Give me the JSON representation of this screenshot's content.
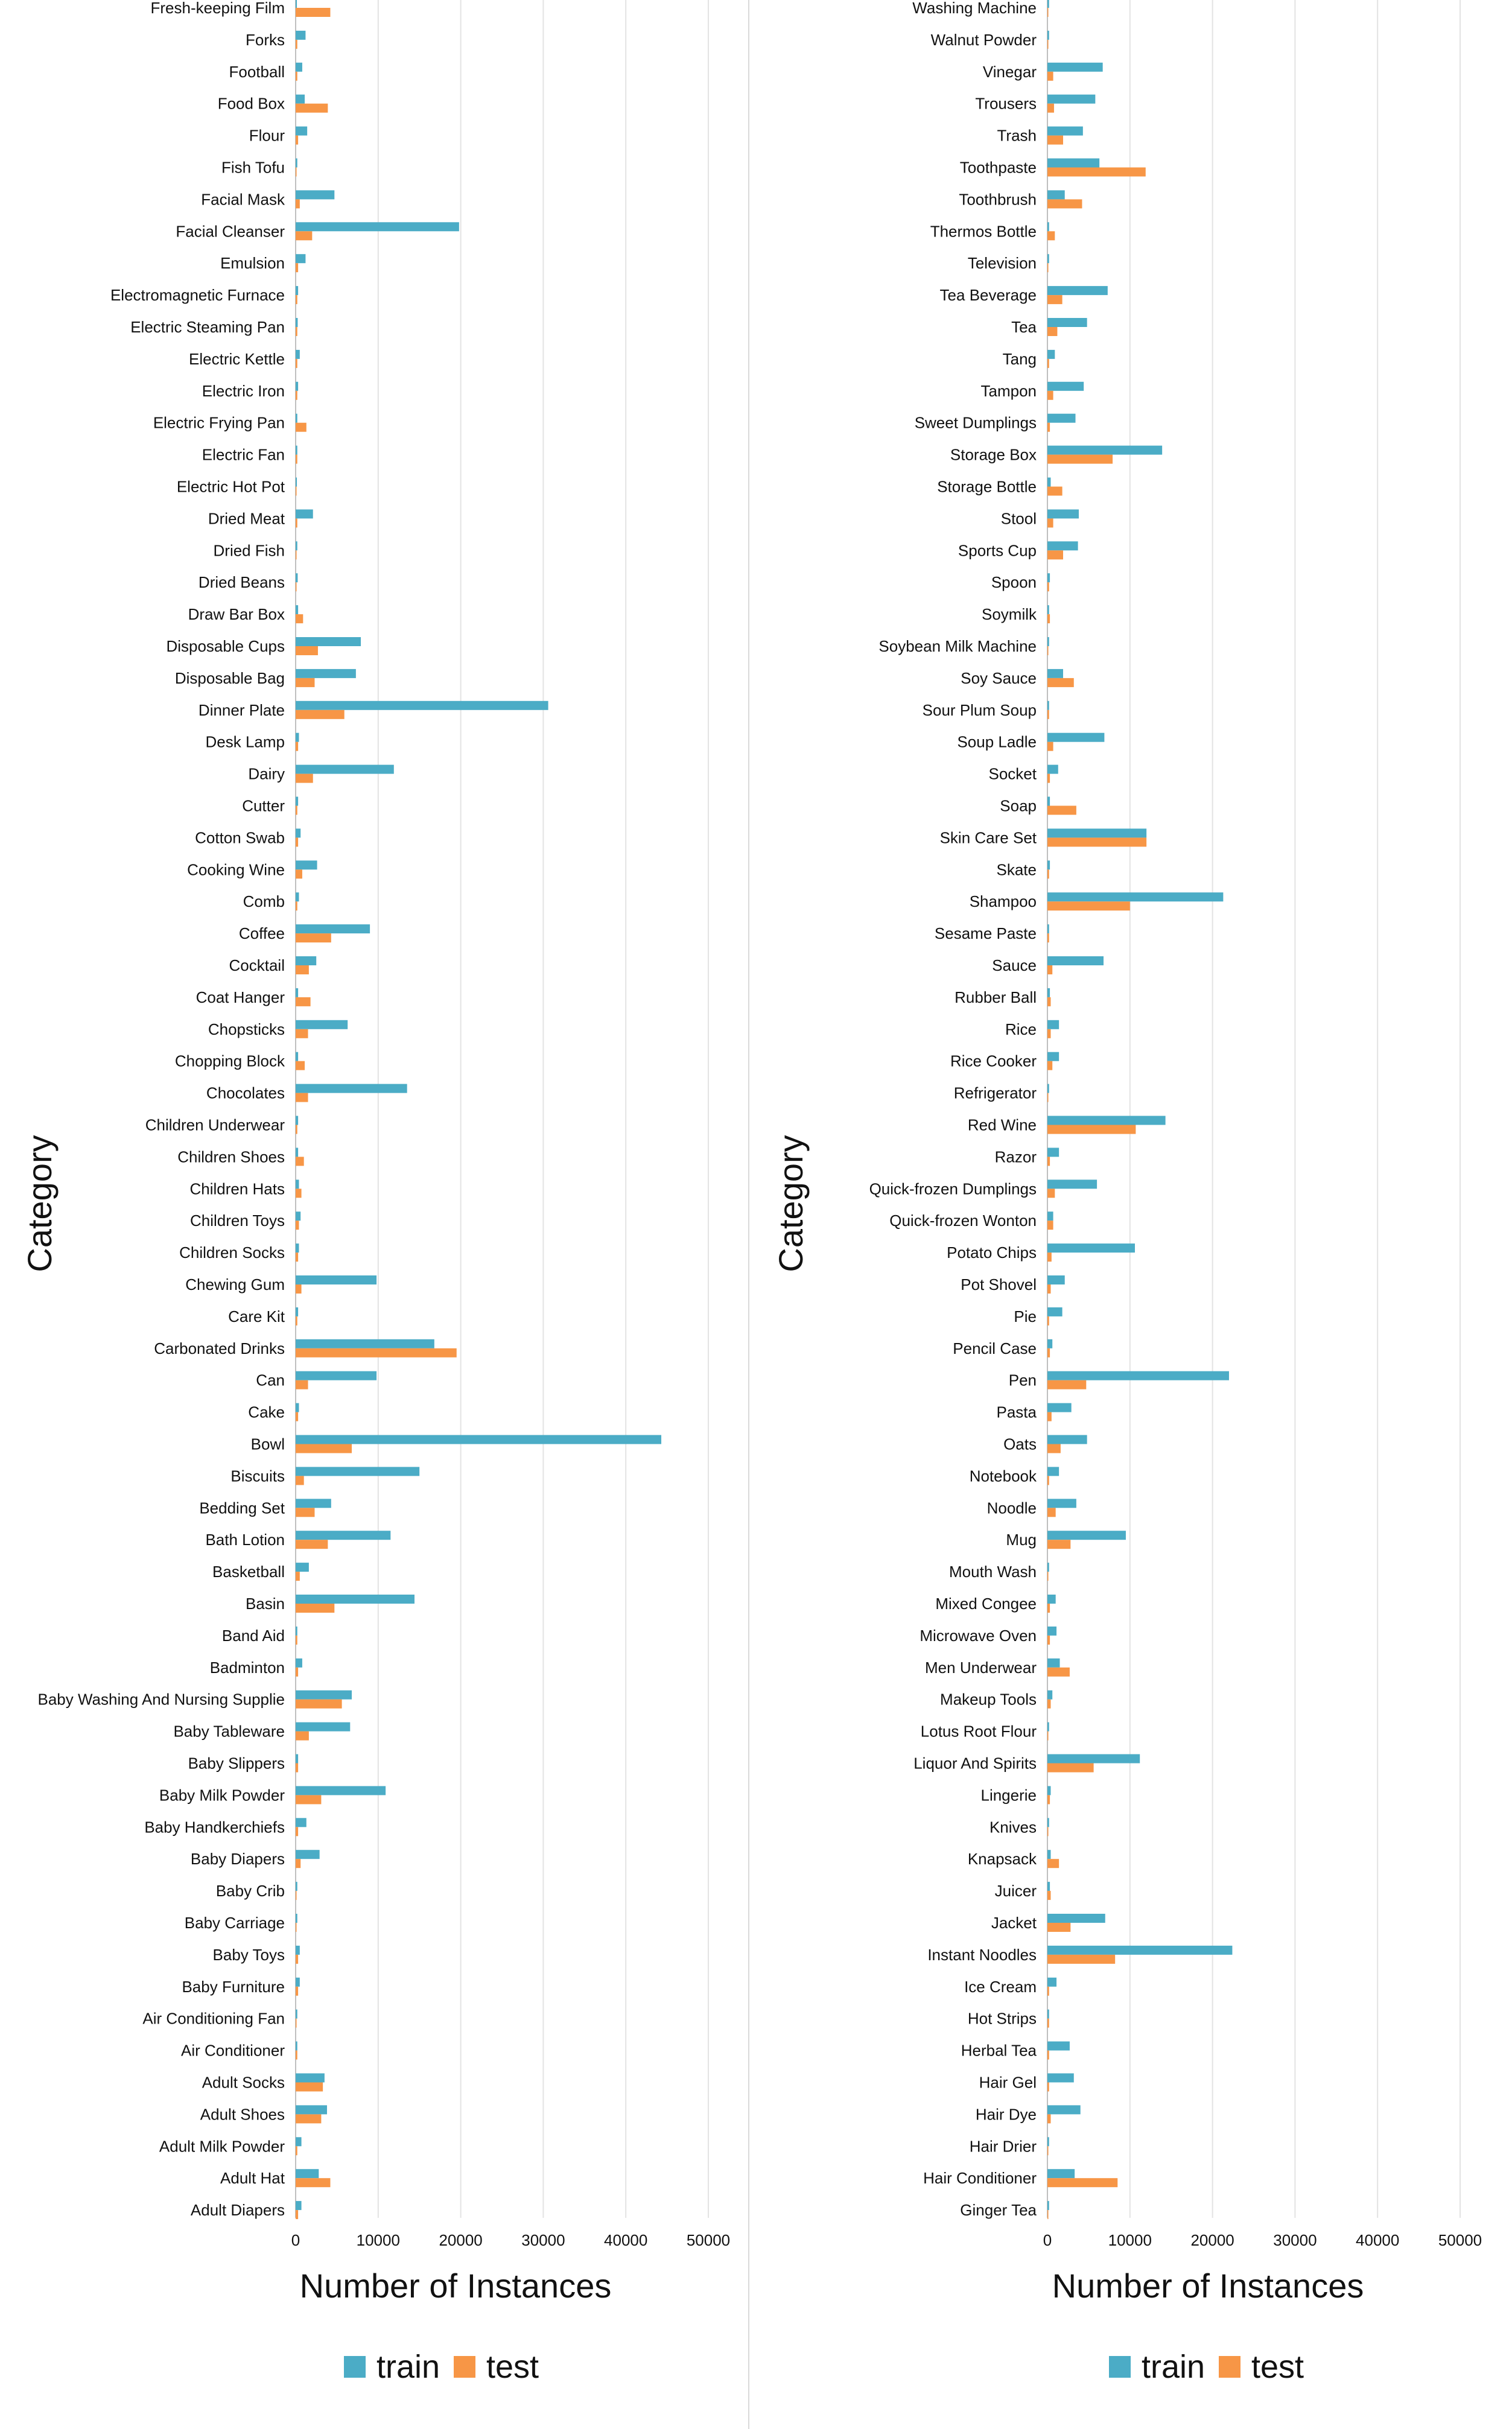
{
  "chart_data": [
    {
      "type": "bar",
      "orientation": "horizontal",
      "xlabel": "Number of Instances",
      "ylabel": "Category",
      "xlim": [
        0,
        50000
      ],
      "xticks": [
        0,
        10000,
        20000,
        30000,
        40000,
        50000
      ],
      "grid": true,
      "legend_position": "bottom",
      "categories": [
        "Fresh-keeping Film",
        "Forks",
        "Football",
        "Food Box",
        "Flour",
        "Fish Tofu",
        "Facial Mask",
        "Facial Cleanser",
        "Emulsion",
        "Electromagnetic Furnace",
        "Electric Steaming Pan",
        "Electric Kettle",
        "Electric Iron",
        "Electric Frying Pan",
        "Electric Fan",
        "Electric Hot Pot",
        "Dried Meat",
        "Dried Fish",
        "Dried Beans",
        "Draw Bar Box",
        "Disposable Cups",
        "Disposable Bag",
        "Dinner Plate",
        "Desk Lamp",
        "Dairy",
        "Cutter",
        "Cotton Swab",
        "Cooking Wine",
        "Comb",
        "Coffee",
        "Cocktail",
        "Coat Hanger",
        "Chopsticks",
        "Chopping Block",
        "Chocolates",
        "Children Underwear",
        "Children Shoes",
        "Children Hats",
        "Children Toys",
        "Children Socks",
        "Chewing Gum",
        "Care Kit",
        "Carbonated Drinks",
        "Can",
        "Cake",
        "Bowl",
        "Biscuits",
        "Bedding Set",
        "Bath Lotion",
        "Basketball",
        "Basin",
        "Band Aid",
        "Badminton",
        "Baby Washing And Nursing Supplie",
        "Baby Tableware",
        "Baby Slippers",
        "Baby Milk Powder",
        "Baby Handkerchiefs",
        "Baby Diapers",
        "Baby Crib",
        "Baby Carriage",
        "Baby Toys",
        "Baby Furniture",
        "Air Conditioning Fan",
        "Air Conditioner",
        "Adult Socks",
        "Adult Shoes",
        "Adult Milk Powder",
        "Adult Hat",
        "Adult Diapers"
      ],
      "series": [
        {
          "name": "train",
          "color": "#4bacc6",
          "values": [
            150,
            1200,
            800,
            1100,
            1400,
            200,
            4700,
            19800,
            1200,
            300,
            250,
            500,
            300,
            200,
            200,
            150,
            2100,
            200,
            250,
            300,
            7900,
            7300,
            30600,
            400,
            11900,
            300,
            600,
            2600,
            400,
            9000,
            2500,
            300,
            6300,
            300,
            13500,
            300,
            300,
            400,
            600,
            400,
            9800,
            300,
            16800,
            9800,
            400,
            44300,
            15000,
            4300,
            11500,
            1600,
            14400,
            200,
            800,
            6800,
            6600,
            300,
            10900,
            1300,
            2900,
            200,
            200,
            500,
            500,
            200,
            200,
            3500,
            3800,
            700,
            2800,
            700
          ]
        },
        {
          "name": "test",
          "color": "#f79646",
          "values": [
            4200,
            200,
            200,
            3900,
            300,
            100,
            500,
            2000,
            300,
            200,
            200,
            200,
            200,
            1300,
            200,
            100,
            200,
            100,
            100,
            900,
            2700,
            2300,
            5900,
            300,
            2100,
            200,
            300,
            800,
            200,
            4300,
            1600,
            1800,
            1500,
            1100,
            1500,
            200,
            1000,
            700,
            400,
            300,
            700,
            200,
            19500,
            1500,
            300,
            6800,
            1000,
            2300,
            3900,
            500,
            4700,
            200,
            300,
            5600,
            1600,
            300,
            3100,
            300,
            600,
            100,
            100,
            300,
            300,
            100,
            200,
            3300,
            3100,
            200,
            4200,
            300
          ]
        }
      ]
    },
    {
      "type": "bar",
      "orientation": "horizontal",
      "xlabel": "Number of Instances",
      "ylabel": "Category",
      "xlim": [
        0,
        50000
      ],
      "xticks": [
        0,
        10000,
        20000,
        30000,
        40000,
        50000
      ],
      "grid": true,
      "legend_position": "bottom",
      "categories": [
        "Washing Machine",
        "Walnut Powder",
        "Vinegar",
        "Trousers",
        "Trash",
        "Toothpaste",
        "Toothbrush",
        "Thermos Bottle",
        "Television",
        "Tea Beverage",
        "Tea",
        "Tang",
        "Tampon",
        "Sweet Dumplings",
        "Storage Box",
        "Storage Bottle",
        "Stool",
        "Sports Cup",
        "Spoon",
        "Soymilk",
        "Soybean Milk Machine",
        "Soy Sauce",
        "Sour Plum Soup",
        "Soup Ladle",
        "Socket",
        "Soap",
        "Skin Care Set",
        "Skate",
        "Shampoo",
        "Sesame Paste",
        "Sauce",
        "Rubber Ball",
        "Rice",
        "Rice Cooker",
        "Refrigerator",
        "Red Wine",
        "Razor",
        "Quick-frozen Dumplings",
        "Quick-frozen Wonton",
        "Potato Chips",
        "Pot Shovel",
        "Pie",
        "Pencil Case",
        "Pen",
        "Pasta",
        "Oats",
        "Notebook",
        "Noodle",
        "Mug",
        "Mouth Wash",
        "Mixed Congee",
        "Microwave Oven",
        "Men Underwear",
        "Makeup Tools",
        "Lotus Root Flour",
        "Liquor And Spirits",
        "Lingerie",
        "Knives",
        "Knapsack",
        "Juicer",
        "Jacket",
        "Instant Noodles",
        "Ice Cream",
        "Hot Strips",
        "Herbal Tea",
        "Hair Gel",
        "Hair Dye",
        "Hair Drier",
        "Hair Conditioner",
        "Ginger Tea"
      ],
      "series": [
        {
          "name": "train",
          "color": "#4bacc6",
          "values": [
            200,
            200,
            6700,
            5800,
            4300,
            6300,
            2100,
            200,
            200,
            7300,
            4800,
            900,
            4400,
            3400,
            13900,
            400,
            3800,
            3700,
            300,
            200,
            200,
            1900,
            200,
            6900,
            1300,
            300,
            12000,
            300,
            21300,
            200,
            6800,
            300,
            1400,
            1400,
            200,
            14300,
            1400,
            6000,
            700,
            10600,
            2100,
            1800,
            600,
            22000,
            2900,
            4800,
            1400,
            3500,
            9500,
            200,
            1000,
            1100,
            1500,
            600,
            200,
            11200,
            400,
            200,
            400,
            300,
            7000,
            22400,
            1100,
            200,
            2700,
            3200,
            4000,
            200,
            3300,
            200
          ]
        },
        {
          "name": "test",
          "color": "#f79646",
          "values": [
            100,
            100,
            700,
            800,
            1900,
            11900,
            4200,
            900,
            100,
            1800,
            1200,
            200,
            700,
            300,
            7900,
            1800,
            700,
            1900,
            200,
            300,
            100,
            3200,
            200,
            700,
            300,
            3500,
            12000,
            200,
            10000,
            200,
            600,
            400,
            400,
            600,
            100,
            10700,
            300,
            900,
            700,
            500,
            400,
            200,
            300,
            4700,
            500,
            1600,
            200,
            1000,
            2800,
            100,
            300,
            300,
            2700,
            400,
            100,
            5600,
            300,
            100,
            1400,
            400,
            2800,
            8200,
            200,
            200,
            200,
            200,
            400,
            100,
            8500,
            100
          ]
        }
      ]
    }
  ]
}
